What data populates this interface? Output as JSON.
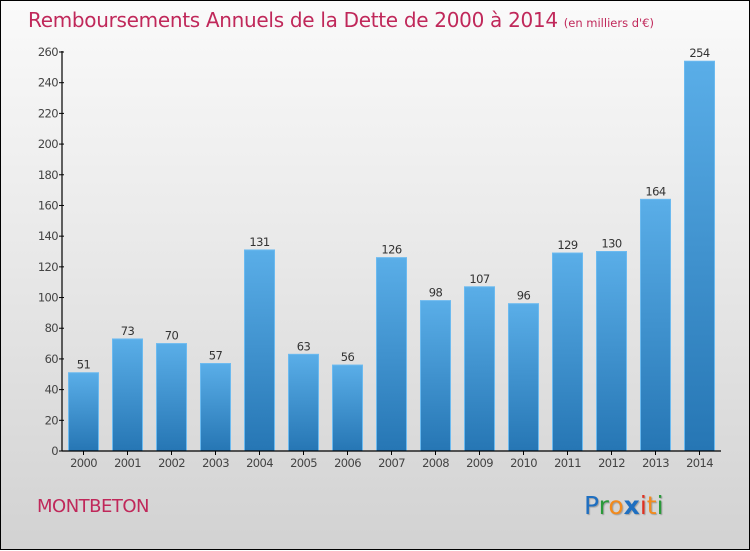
{
  "header": {
    "title": "Remboursements Annuels de la Dette de 2000 à 2014",
    "subtitle": "(en milliers d'€)"
  },
  "footer": {
    "city": "MONTBETON",
    "logo_letters": [
      {
        "char": "P",
        "color": "#1f6fc0"
      },
      {
        "char": "r",
        "color": "#2a9a3a"
      },
      {
        "char": "o",
        "color": "#f28a1c"
      },
      {
        "char": "x",
        "color": "#1f6fc0"
      },
      {
        "char": "i",
        "color": "#e03020"
      },
      {
        "char": "t",
        "color": "#f28a1c"
      },
      {
        "char": "i",
        "color": "#2a9a3a"
      }
    ]
  },
  "colors": {
    "title": "#c0285a",
    "bar_top": "#5aaee8",
    "bar_bottom": "#2676b4"
  },
  "chart_data": {
    "type": "bar",
    "title": "Remboursements Annuels de la Dette de 2000 à 2014 (en milliers d'€)",
    "xlabel": "",
    "ylabel": "",
    "categories": [
      "2000",
      "2001",
      "2002",
      "2003",
      "2004",
      "2005",
      "2006",
      "2007",
      "2008",
      "2009",
      "2010",
      "2011",
      "2012",
      "2013",
      "2014"
    ],
    "values": [
      51,
      73,
      70,
      57,
      131,
      63,
      56,
      126,
      98,
      107,
      96,
      129,
      130,
      164,
      254
    ],
    "ylim": [
      0,
      260
    ],
    "yticks": [
      0,
      20,
      40,
      60,
      80,
      100,
      120,
      140,
      160,
      180,
      200,
      220,
      240,
      260
    ],
    "grid": false,
    "legend": "none",
    "data_labels": true
  }
}
